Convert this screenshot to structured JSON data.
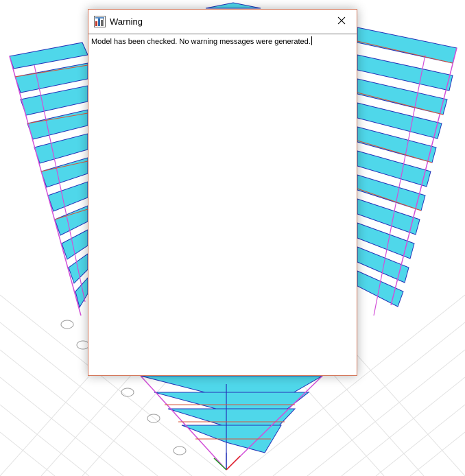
{
  "background": {
    "description_icon": "3d-structural-model",
    "colors": {
      "slab_fill": "#39d3e6",
      "frame_line": "#2433b8",
      "column_line": "#d24fd8",
      "brace_line": "#d8553a",
      "grid_line": "#dcdcdc"
    }
  },
  "dialog": {
    "title": "Warning",
    "app_icon": "sap2000-app-icon",
    "close_icon": "close-icon",
    "message": "Model has been checked.  No warning messages were generated."
  }
}
